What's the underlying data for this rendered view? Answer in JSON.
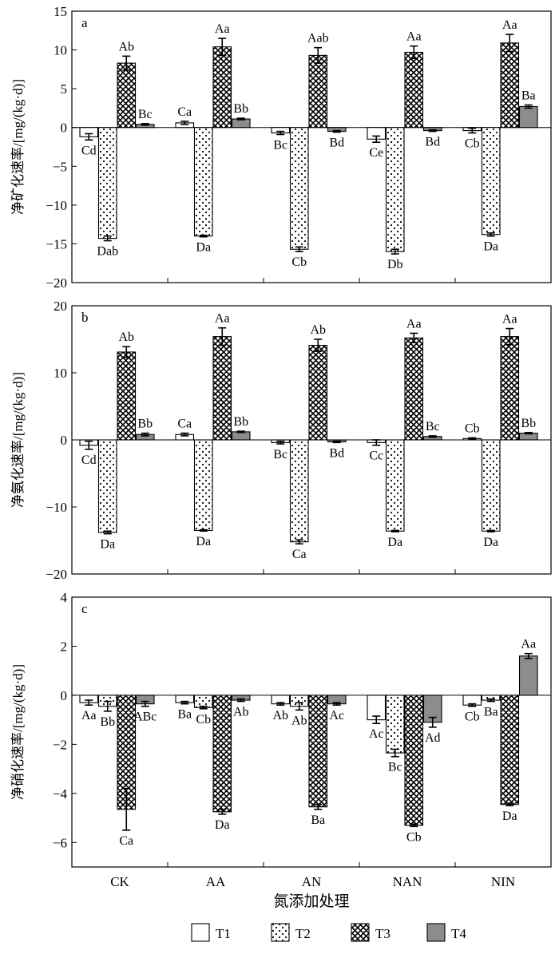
{
  "chart_data": [
    {
      "type": "bar",
      "panel_label": "a",
      "ylabel": "净矿化速率/[mg/(kg·d)]",
      "ylim": [
        -20,
        15
      ],
      "yticks": [
        15,
        10,
        5,
        0,
        -5,
        -10,
        -15,
        -20
      ],
      "ytick_labels": [
        "15",
        "10",
        "5",
        "0",
        "−5",
        "−10",
        "−15",
        "−20"
      ],
      "categories": [
        "CK",
        "AA",
        "AN",
        "NAN",
        "NIN"
      ],
      "series": [
        {
          "name": "T1",
          "values": [
            -1.2,
            0.6,
            -0.7,
            -1.5,
            -0.4
          ],
          "errors": [
            0.4,
            0.2,
            0.2,
            0.4,
            0.3
          ],
          "labels": [
            "Cd",
            "Ca",
            "Bc",
            "Ce",
            "Cb"
          ]
        },
        {
          "name": "T2",
          "values": [
            -14.3,
            -14.0,
            -15.7,
            -16.0,
            -13.8
          ],
          "errors": [
            0.3,
            0.1,
            0.3,
            0.3,
            0.2
          ],
          "labels": [
            "Dab",
            "Da",
            "Cb",
            "Db",
            "Da"
          ]
        },
        {
          "name": "T3",
          "values": [
            8.3,
            10.4,
            9.3,
            9.7,
            10.9
          ],
          "errors": [
            0.9,
            1.1,
            1.0,
            0.8,
            1.1
          ],
          "labels": [
            "Ab",
            "Aa",
            "Aab",
            "Aa",
            "Aa"
          ]
        },
        {
          "name": "T4",
          "values": [
            0.4,
            1.1,
            -0.5,
            -0.4,
            2.7
          ],
          "errors": [
            0.1,
            0.1,
            0.1,
            0.1,
            0.2
          ],
          "labels": [
            "Bc",
            "Bb",
            "Bd",
            "Bd",
            "Ba"
          ]
        }
      ]
    },
    {
      "type": "bar",
      "panel_label": "b",
      "ylabel": "净氨化速率/[mg/(kg·d)]",
      "ylim": [
        -20,
        20
      ],
      "yticks": [
        20,
        10,
        0,
        -10,
        -20
      ],
      "ytick_labels": [
        "20",
        "10",
        "0",
        "−10",
        "−20"
      ],
      "categories": [
        "CK",
        "AA",
        "AN",
        "NAN",
        "NIN"
      ],
      "series": [
        {
          "name": "T1",
          "values": [
            -0.8,
            0.8,
            -0.4,
            -0.4,
            0.2
          ],
          "errors": [
            0.6,
            0.2,
            0.2,
            0.4,
            0.1
          ],
          "labels": [
            "Cd",
            "Ca",
            "Bc",
            "Cc",
            "Cb"
          ]
        },
        {
          "name": "T2",
          "values": [
            -13.8,
            -13.5,
            -15.2,
            -13.6,
            -13.6
          ],
          "errors": [
            0.2,
            0.1,
            0.3,
            0.1,
            0.1
          ],
          "labels": [
            "Da",
            "Da",
            "Ca",
            "Da",
            "Da"
          ]
        },
        {
          "name": "T3",
          "values": [
            13.1,
            15.4,
            14.1,
            15.2,
            15.4
          ],
          "errors": [
            0.8,
            1.3,
            0.9,
            0.7,
            1.2
          ],
          "labels": [
            "Ab",
            "Aa",
            "Ab",
            "Aa",
            "Aa"
          ]
        },
        {
          "name": "T4",
          "values": [
            0.8,
            1.2,
            -0.3,
            0.5,
            1.0
          ],
          "errors": [
            0.2,
            0.1,
            0.1,
            0.1,
            0.1
          ],
          "labels": [
            "Bb",
            "Bb",
            "Bd",
            "Bc",
            "Bb"
          ]
        }
      ]
    },
    {
      "type": "bar",
      "panel_label": "c",
      "ylabel": "净硝化速率/[mg/(kg·d)]",
      "xlabel": "氮添加处理",
      "ylim": [
        -7,
        4
      ],
      "yticks": [
        4,
        2,
        0,
        -2,
        -4,
        -6
      ],
      "ytick_labels": [
        "4",
        "2",
        "0",
        "−2",
        "−4",
        "−6"
      ],
      "categories": [
        "CK",
        "AA",
        "AN",
        "NAN",
        "NIN"
      ],
      "series": [
        {
          "name": "T1",
          "values": [
            -0.3,
            -0.3,
            -0.35,
            -1.0,
            -0.4
          ],
          "errors": [
            0.1,
            0.05,
            0.05,
            0.15,
            0.05
          ],
          "labels": [
            "Aa",
            "Ba",
            "Ab",
            "Ac",
            "Cb"
          ]
        },
        {
          "name": "T2",
          "values": [
            -0.45,
            -0.5,
            -0.45,
            -2.35,
            -0.2
          ],
          "errors": [
            0.2,
            0.05,
            0.15,
            0.15,
            0.05
          ],
          "labels": [
            "Bb",
            "Cb",
            "Ab",
            "Bc",
            "Ba"
          ]
        },
        {
          "name": "T3",
          "values": [
            -4.65,
            -4.75,
            -4.55,
            -5.3,
            -4.45
          ],
          "errors": [
            0.85,
            0.1,
            0.1,
            0.05,
            0.05
          ],
          "labels": [
            "Ca",
            "Da",
            "Ba",
            "Cb",
            "Da"
          ]
        },
        {
          "name": "T4",
          "values": [
            -0.35,
            -0.2,
            -0.35,
            -1.1,
            1.6
          ],
          "errors": [
            0.1,
            0.05,
            0.05,
            0.2,
            0.1
          ],
          "labels": [
            "ABc",
            "Ab",
            "Ac",
            "Ad",
            "Aa"
          ]
        }
      ]
    }
  ],
  "legend": [
    {
      "name": "T1",
      "pattern": "none"
    },
    {
      "name": "T2",
      "pattern": "dots"
    },
    {
      "name": "T3",
      "pattern": "crosshatch"
    },
    {
      "name": "T4",
      "pattern": "solid-gray"
    }
  ],
  "colors": {
    "axis": "#000000",
    "t4_fill": "#8c8c8c",
    "background": "#ffffff"
  }
}
